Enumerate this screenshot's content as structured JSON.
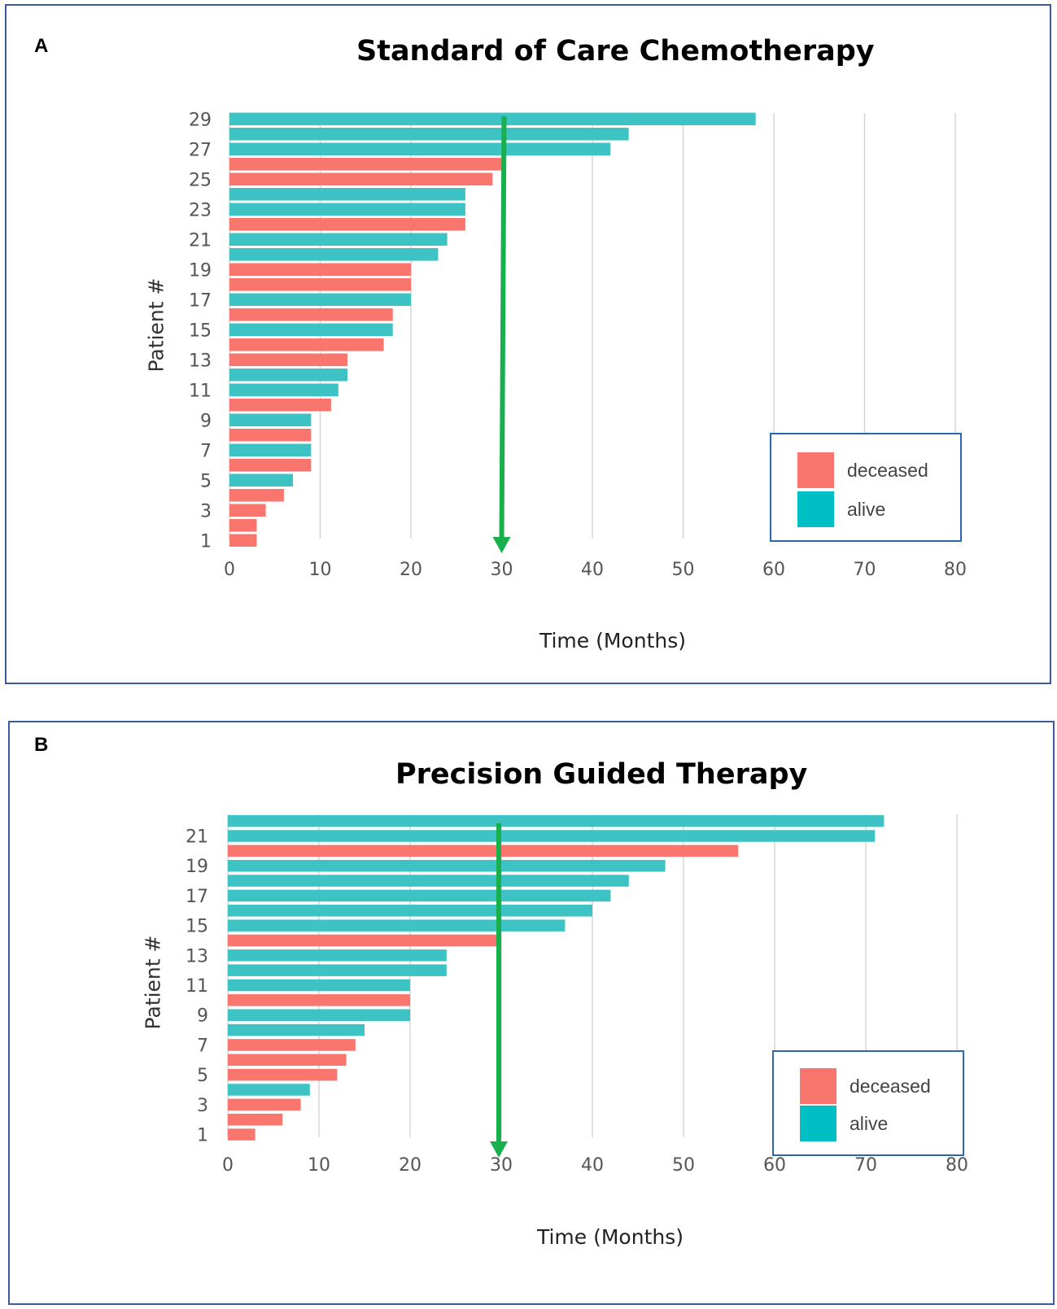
{
  "colors": {
    "deceased": "#F8766D",
    "alive": "#3EC3C4",
    "arrow": "#17B04C",
    "grid": "#d5d5d5",
    "frame": "#3d5a9e",
    "legend_border": "#2a67b0"
  },
  "chart_data": [
    {
      "panel": "A",
      "type": "bar",
      "orientation": "horizontal",
      "title": "Standard of Care Chemotherapy",
      "xlabel": "Time (Months)",
      "ylabel": "Patient #",
      "xlim": [
        0,
        80
      ],
      "x_ticks": [
        0,
        10,
        20,
        30,
        40,
        50,
        60,
        70,
        80
      ],
      "y_ticks": [
        1,
        3,
        5,
        7,
        9,
        11,
        13,
        15,
        17,
        19,
        21,
        23,
        25,
        27,
        29
      ],
      "reference_line_x": 30,
      "legend": [
        {
          "label": "deceased",
          "status": "deceased"
        },
        {
          "label": "alive",
          "status": "alive"
        }
      ],
      "patients": [
        {
          "id": 1,
          "months": 3,
          "status": "deceased"
        },
        {
          "id": 2,
          "months": 3,
          "status": "deceased"
        },
        {
          "id": 3,
          "months": 4,
          "status": "deceased"
        },
        {
          "id": 4,
          "months": 6,
          "status": "deceased"
        },
        {
          "id": 5,
          "months": 7,
          "status": "alive"
        },
        {
          "id": 6,
          "months": 9,
          "status": "deceased"
        },
        {
          "id": 7,
          "months": 9,
          "status": "alive"
        },
        {
          "id": 8,
          "months": 9,
          "status": "deceased"
        },
        {
          "id": 9,
          "months": 9,
          "status": "alive"
        },
        {
          "id": 10,
          "months": 11.2,
          "status": "deceased"
        },
        {
          "id": 11,
          "months": 12,
          "status": "alive"
        },
        {
          "id": 12,
          "months": 13,
          "status": "alive"
        },
        {
          "id": 13,
          "months": 13,
          "status": "deceased"
        },
        {
          "id": 14,
          "months": 17,
          "status": "deceased"
        },
        {
          "id": 15,
          "months": 18,
          "status": "alive"
        },
        {
          "id": 16,
          "months": 18,
          "status": "deceased"
        },
        {
          "id": 17,
          "months": 20,
          "status": "alive"
        },
        {
          "id": 18,
          "months": 20,
          "status": "deceased"
        },
        {
          "id": 19,
          "months": 20,
          "status": "deceased"
        },
        {
          "id": 20,
          "months": 23,
          "status": "alive"
        },
        {
          "id": 21,
          "months": 24,
          "status": "alive"
        },
        {
          "id": 22,
          "months": 26,
          "status": "deceased"
        },
        {
          "id": 23,
          "months": 26,
          "status": "alive"
        },
        {
          "id": 24,
          "months": 26,
          "status": "alive"
        },
        {
          "id": 25,
          "months": 29,
          "status": "deceased"
        },
        {
          "id": 26,
          "months": 30,
          "status": "deceased"
        },
        {
          "id": 27,
          "months": 42,
          "status": "alive"
        },
        {
          "id": 28,
          "months": 44,
          "status": "alive"
        },
        {
          "id": 29,
          "months": 58,
          "status": "alive"
        }
      ]
    },
    {
      "panel": "B",
      "type": "bar",
      "orientation": "horizontal",
      "title": "Precision Guided Therapy",
      "xlabel": "Time (Months)",
      "ylabel": "Patient #",
      "xlim": [
        0,
        80
      ],
      "x_ticks": [
        0,
        10,
        20,
        30,
        40,
        50,
        60,
        70,
        80
      ],
      "y_ticks": [
        1,
        3,
        5,
        7,
        9,
        11,
        13,
        15,
        17,
        19,
        21
      ],
      "reference_line_x": 30,
      "legend": [
        {
          "label": "deceased",
          "status": "deceased"
        },
        {
          "label": "alive",
          "status": "alive"
        }
      ],
      "patients": [
        {
          "id": 1,
          "months": 3,
          "status": "deceased"
        },
        {
          "id": 2,
          "months": 6,
          "status": "deceased"
        },
        {
          "id": 3,
          "months": 8,
          "status": "deceased"
        },
        {
          "id": 4,
          "months": 9,
          "status": "alive"
        },
        {
          "id": 5,
          "months": 12,
          "status": "deceased"
        },
        {
          "id": 6,
          "months": 13,
          "status": "deceased"
        },
        {
          "id": 7,
          "months": 14,
          "status": "deceased"
        },
        {
          "id": 8,
          "months": 15,
          "status": "alive"
        },
        {
          "id": 9,
          "months": 20,
          "status": "alive"
        },
        {
          "id": 10,
          "months": 20,
          "status": "deceased"
        },
        {
          "id": 11,
          "months": 20,
          "status": "alive"
        },
        {
          "id": 12,
          "months": 24,
          "status": "alive"
        },
        {
          "id": 13,
          "months": 24,
          "status": "alive"
        },
        {
          "id": 14,
          "months": 30,
          "status": "deceased"
        },
        {
          "id": 15,
          "months": 37,
          "status": "alive"
        },
        {
          "id": 16,
          "months": 40,
          "status": "alive"
        },
        {
          "id": 17,
          "months": 42,
          "status": "alive"
        },
        {
          "id": 18,
          "months": 44,
          "status": "alive"
        },
        {
          "id": 19,
          "months": 48,
          "status": "alive"
        },
        {
          "id": 20,
          "months": 56,
          "status": "deceased"
        },
        {
          "id": 21,
          "months": 71,
          "status": "alive"
        },
        {
          "id": 22,
          "months": 72,
          "status": "alive"
        }
      ]
    }
  ]
}
